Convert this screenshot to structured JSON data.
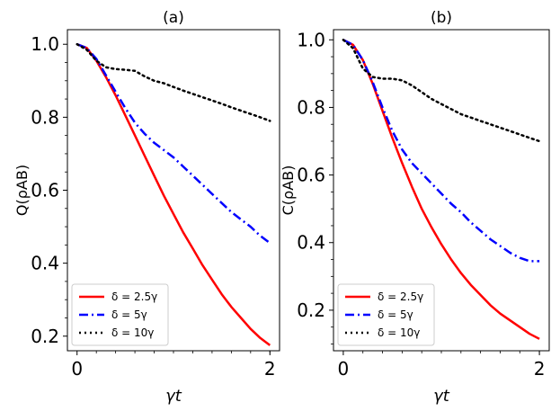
{
  "chart_data": [
    {
      "type": "line",
      "title": "(a)",
      "xlabel": "γt",
      "ylabel": "Q(ρAB)",
      "xlim": [
        -0.1,
        2.1
      ],
      "ylim": [
        0.16,
        1.04
      ],
      "xticks": [
        0,
        2
      ],
      "xtick_labels": [
        "0",
        "2"
      ],
      "yticks": [
        0.2,
        0.4,
        0.6,
        0.8,
        1.0
      ],
      "ytick_labels": [
        "0.2",
        "0.4",
        "0.6",
        "0.8",
        "1.0"
      ],
      "legend_position": "lower-left",
      "series": [
        {
          "name": "δ = 2.5γ",
          "color": "#ff0000",
          "style": "solid",
          "x": [
            0,
            0.1,
            0.2,
            0.3,
            0.4,
            0.5,
            0.6,
            0.7,
            0.8,
            0.9,
            1.0,
            1.1,
            1.2,
            1.3,
            1.4,
            1.5,
            1.6,
            1.7,
            1.8,
            1.9,
            2.0
          ],
          "y": [
            1.0,
            0.99,
            0.955,
            0.91,
            0.86,
            0.805,
            0.75,
            0.695,
            0.64,
            0.585,
            0.535,
            0.485,
            0.44,
            0.395,
            0.355,
            0.315,
            0.28,
            0.25,
            0.22,
            0.195,
            0.175
          ]
        },
        {
          "name": "δ = 5γ",
          "color": "#0000ff",
          "style": "dashdot",
          "x": [
            0,
            0.1,
            0.2,
            0.3,
            0.4,
            0.5,
            0.6,
            0.7,
            0.8,
            0.9,
            1.0,
            1.1,
            1.2,
            1.3,
            1.4,
            1.5,
            1.6,
            1.7,
            1.8,
            1.9,
            2.0
          ],
          "y": [
            1.0,
            0.99,
            0.96,
            0.915,
            0.87,
            0.825,
            0.785,
            0.755,
            0.73,
            0.71,
            0.69,
            0.665,
            0.64,
            0.615,
            0.59,
            0.565,
            0.54,
            0.52,
            0.5,
            0.475,
            0.455
          ]
        },
        {
          "name": "δ = 10γ",
          "color": "#000000",
          "style": "dotted",
          "x": [
            0,
            0.1,
            0.2,
            0.3,
            0.4,
            0.5,
            0.6,
            0.7,
            0.8,
            0.9,
            1.0,
            1.1,
            1.2,
            1.3,
            1.4,
            1.5,
            1.6,
            1.7,
            1.8,
            1.9,
            2.0
          ],
          "y": [
            1.0,
            0.985,
            0.955,
            0.937,
            0.932,
            0.93,
            0.927,
            0.912,
            0.9,
            0.893,
            0.883,
            0.873,
            0.864,
            0.855,
            0.846,
            0.837,
            0.827,
            0.818,
            0.809,
            0.8,
            0.79
          ]
        }
      ]
    },
    {
      "type": "line",
      "title": "(b)",
      "xlabel": "γt",
      "ylabel": "C(ρAB)",
      "xlim": [
        -0.1,
        2.1
      ],
      "ylim": [
        0.08,
        1.03
      ],
      "xticks": [
        0,
        2
      ],
      "xtick_labels": [
        "0",
        "2"
      ],
      "yticks": [
        0.2,
        0.4,
        0.6,
        0.8,
        1.0
      ],
      "ytick_labels": [
        "0.2",
        "0.4",
        "0.6",
        "0.8",
        "1.0"
      ],
      "legend_position": "lower-left",
      "series": [
        {
          "name": "δ = 2.5γ",
          "color": "#ff0000",
          "style": "solid",
          "x": [
            0,
            0.1,
            0.2,
            0.3,
            0.4,
            0.5,
            0.6,
            0.7,
            0.8,
            0.9,
            1.0,
            1.1,
            1.2,
            1.3,
            1.4,
            1.5,
            1.6,
            1.7,
            1.8,
            1.9,
            2.0
          ],
          "y": [
            1.0,
            0.985,
            0.94,
            0.87,
            0.79,
            0.71,
            0.635,
            0.565,
            0.5,
            0.445,
            0.395,
            0.35,
            0.31,
            0.275,
            0.245,
            0.215,
            0.19,
            0.17,
            0.15,
            0.13,
            0.115
          ]
        },
        {
          "name": "δ = 5γ",
          "color": "#0000ff",
          "style": "dashdot",
          "x": [
            0,
            0.1,
            0.2,
            0.3,
            0.4,
            0.5,
            0.6,
            0.7,
            0.8,
            0.9,
            1.0,
            1.1,
            1.2,
            1.3,
            1.4,
            1.5,
            1.6,
            1.7,
            1.8,
            1.9,
            2.0
          ],
          "y": [
            1.0,
            0.985,
            0.94,
            0.875,
            0.8,
            0.73,
            0.675,
            0.635,
            0.605,
            0.575,
            0.545,
            0.515,
            0.49,
            0.46,
            0.435,
            0.41,
            0.39,
            0.37,
            0.355,
            0.345,
            0.345
          ]
        },
        {
          "name": "δ = 10γ",
          "color": "#000000",
          "style": "dotted",
          "x": [
            0,
            0.1,
            0.2,
            0.3,
            0.4,
            0.5,
            0.6,
            0.7,
            0.8,
            0.9,
            1.0,
            1.1,
            1.2,
            1.3,
            1.4,
            1.5,
            1.6,
            1.7,
            1.8,
            1.9,
            2.0
          ],
          "y": [
            1.0,
            0.975,
            0.915,
            0.89,
            0.885,
            0.885,
            0.88,
            0.865,
            0.845,
            0.825,
            0.81,
            0.795,
            0.78,
            0.77,
            0.76,
            0.75,
            0.74,
            0.73,
            0.72,
            0.71,
            0.7
          ]
        }
      ]
    }
  ]
}
